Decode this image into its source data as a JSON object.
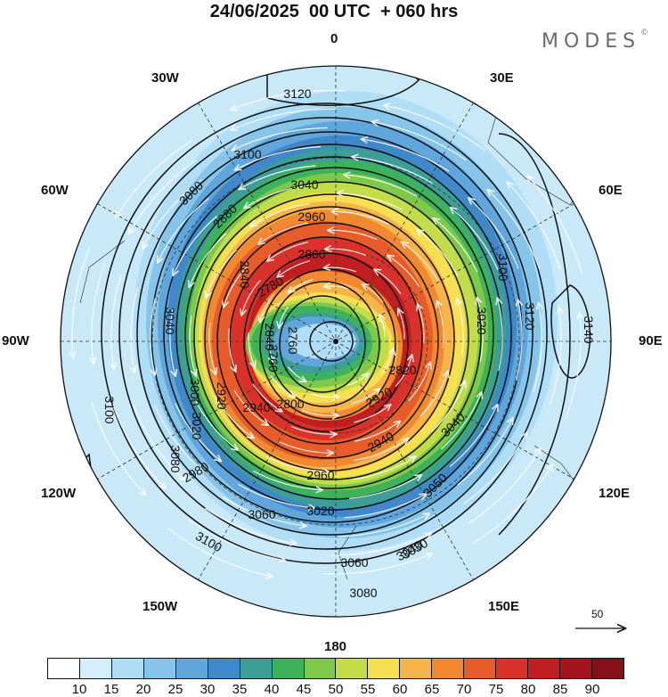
{
  "title": "24/06/2025  00 UTC  + 060 hrs",
  "brand": {
    "name": "MODES",
    "mark": "©"
  },
  "longitude_labels": [
    "0",
    "30E",
    "60E",
    "90E",
    "120E",
    "150E",
    "180",
    "150W",
    "120W",
    "90W",
    "60W",
    "30W"
  ],
  "contours": {
    "labels": [
      "3140",
      "3120",
      "3120",
      "3100",
      "3100",
      "3100",
      "3100",
      "3080",
      "3080",
      "3080",
      "3060",
      "3060",
      "3050",
      "3040",
      "3040",
      "3040",
      "3040",
      "3030",
      "3020",
      "3020",
      "3020",
      "3000",
      "2980",
      "2960",
      "2960",
      "2940",
      "2940",
      "2920",
      "2920",
      "2880",
      "2860",
      "2840",
      "2840",
      "2820",
      "2800",
      "2780",
      "2760",
      "2760"
    ]
  },
  "colorbar": {
    "ticks": [
      "10",
      "15",
      "20",
      "25",
      "30",
      "35",
      "40",
      "45",
      "50",
      "55",
      "60",
      "65",
      "70",
      "75",
      "80",
      "85",
      "90"
    ],
    "colors": [
      "#ffffff",
      "#d4eefb",
      "#b0def6",
      "#86c4ea",
      "#5fa6dc",
      "#3f88c9",
      "#3d9e98",
      "#3cb35a",
      "#7ec84a",
      "#c3dc4a",
      "#f6df50",
      "#f7b44a",
      "#f2882f",
      "#e85c2a",
      "#d8322a",
      "#c01f22",
      "#a5141c",
      "#86101a"
    ]
  },
  "reference_vector": {
    "value": "50"
  }
}
